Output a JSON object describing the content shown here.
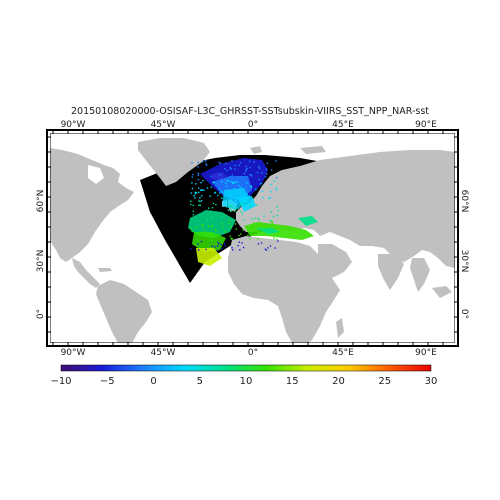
{
  "title": "20150108020000-OSISAF-L3C_GHRSST-SSTsubskin-VIIRS_SST_NPP_NAR-sst",
  "axes": {
    "lon_ticks": [
      "90°W",
      "45°W",
      "0°",
      "45°E",
      "90°E"
    ],
    "lat_ticks_left": [
      "60°N",
      "30°N",
      "0°"
    ],
    "lat_ticks_right": [
      "60°N",
      "30°N",
      "0°"
    ]
  },
  "colorbar": {
    "ticks": [
      "−10",
      "−5",
      "0",
      "5",
      "10",
      "15",
      "20",
      "25",
      "30"
    ],
    "min": -10,
    "max": 30,
    "colors": [
      "#3b0f70",
      "#1b1bd6",
      "#1e7fff",
      "#00d8ff",
      "#00e08a",
      "#36e000",
      "#c8ee00",
      "#ffcc00",
      "#ff5a00",
      "#e60000"
    ]
  },
  "colors": {
    "land": "#c0c0c0",
    "no_data": "#000000",
    "ocean_outside": "#ffffff"
  }
}
